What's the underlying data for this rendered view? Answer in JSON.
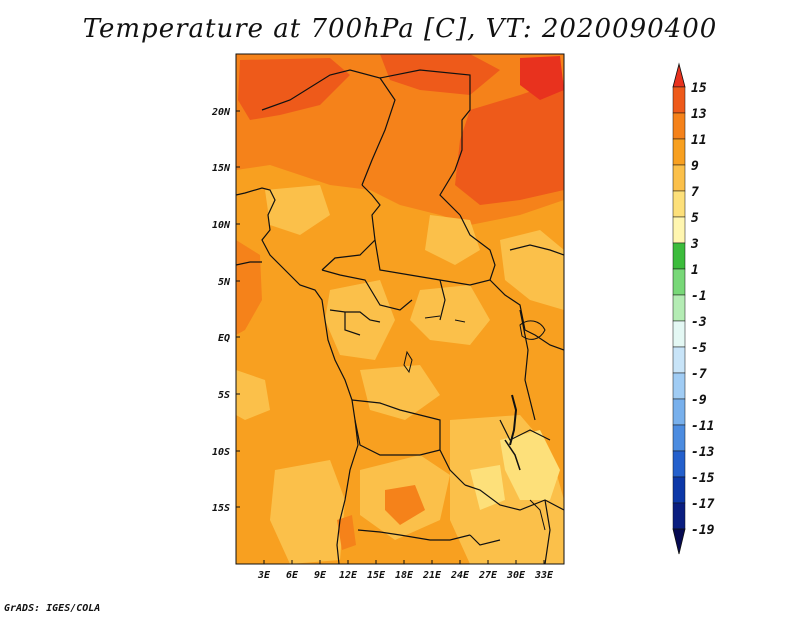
{
  "title": "Temperature at 700hPa [C], VT: 2020090400",
  "footer": "GrADS: IGES/COLA",
  "map": {
    "lon_range": [
      0,
      35
    ],
    "lat_range": [
      -20,
      24
    ],
    "x_ticks": [
      "3E",
      "6E",
      "9E",
      "12E",
      "15E",
      "18E",
      "21E",
      "24E",
      "27E",
      "30E",
      "33E"
    ],
    "y_ticks": [
      "20N",
      "15N",
      "10N",
      "5N",
      "EQ",
      "5S",
      "10S",
      "15S"
    ],
    "dominant_field": "9 to 11 C over most of central Africa; 11 to 15 C over the Sahel/Sahara in the north; 5 to 9 C patches in the east and south"
  },
  "colorbar": {
    "levels": [
      "15",
      "13",
      "11",
      "9",
      "7",
      "5",
      "3",
      "1",
      "-1",
      "-3",
      "-5",
      "-7",
      "-9",
      "-11",
      "-13",
      "-15",
      "-17",
      "-19"
    ],
    "colors": [
      "#e8321e",
      "#ee5a1a",
      "#f5821a",
      "#f8a020",
      "#fbc04a",
      "#fde07a",
      "#fff6b0",
      "#3cbc3c",
      "#78d878",
      "#b4ecb4",
      "#e4f8f4",
      "#c8e4f8",
      "#a0ccf4",
      "#78b0ec",
      "#4c8ce0",
      "#2460cc",
      "#0c38a8",
      "#0a1e80",
      "#060a52",
      "#e6e6f8"
    ]
  }
}
